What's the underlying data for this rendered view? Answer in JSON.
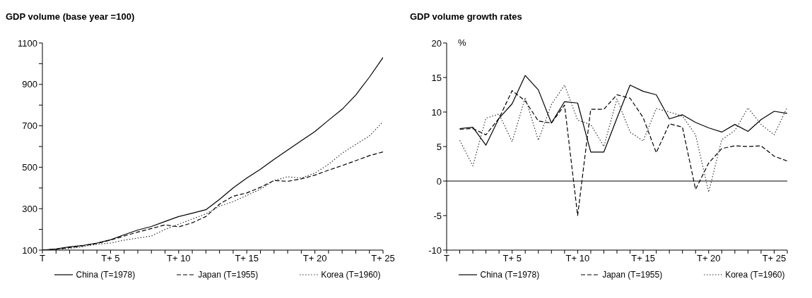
{
  "chart_data": [
    {
      "type": "line",
      "title": "GDP volume (base year =100)",
      "categories": [
        "T",
        null,
        null,
        null,
        null,
        "T+ 5",
        null,
        null,
        null,
        null,
        "T+ 10",
        null,
        null,
        null,
        null,
        "T+ 15",
        null,
        null,
        null,
        null,
        "T+ 20",
        null,
        null,
        null,
        null,
        "T+ 25"
      ],
      "series": [
        {
          "name": "China (T=1978)",
          "color": "#000000",
          "line_style": "solid",
          "values": [
            100,
            106,
            116,
            123,
            134,
            150,
            174,
            197,
            214,
            238,
            262,
            278,
            295,
            345,
            400,
            448,
            490,
            538,
            583,
            628,
            672,
            727,
            780,
            849,
            935,
            1030
          ]
        },
        {
          "name": "Japan (T=1955)",
          "color": "#000000",
          "line_style": "dashed",
          "values": [
            100,
            104,
            112,
            121,
            132,
            148,
            168,
            187,
            204,
            222,
            212,
            232,
            262,
            322,
            360,
            376,
            403,
            436,
            432,
            444,
            462,
            486,
            508,
            532,
            556,
            574
          ]
        },
        {
          "name": "Korea (T=1960)",
          "color": "#333333",
          "line_style": "dotted",
          "values": [
            100,
            102,
            108,
            117,
            128,
            134,
            148,
            158,
            168,
            200,
            225,
            250,
            275,
            312,
            334,
            364,
            394,
            436,
            454,
            448,
            472,
            514,
            568,
            610,
            651,
            720
          ]
        }
      ],
      "ylim": [
        100,
        1100
      ],
      "yticks": [
        100,
        {
          "value": 200,
          "label": null
        },
        300,
        {
          "value": 400,
          "label": null
        },
        500,
        {
          "value": 600,
          "label": null
        },
        700,
        {
          "value": 800,
          "label": null
        },
        900,
        {
          "value": 1000,
          "label": null
        },
        1100
      ],
      "grid": false,
      "legend": "bottom",
      "marker": "none"
    },
    {
      "type": "line",
      "title": "GDP volume growth rates",
      "ylabel": "%",
      "categories": [
        "T",
        null,
        null,
        null,
        null,
        "T+ 5",
        null,
        null,
        null,
        null,
        "T+ 10",
        null,
        null,
        null,
        null,
        "T+ 15",
        null,
        null,
        null,
        null,
        "T+ 20",
        null,
        null,
        null,
        null,
        "T+ 25",
        null
      ],
      "series": [
        {
          "name": "China (T=1978)",
          "color": "#000000",
          "line_style": "solid",
          "values": [
            null,
            7.6,
            7.8,
            5.2,
            9.1,
            11.2,
            15.3,
            13.2,
            8.4,
            11.5,
            11.3,
            4.2,
            4.2,
            9.1,
            13.9,
            13.0,
            12.5,
            9.0,
            9.6,
            8.5,
            7.7,
            7.1,
            8.2,
            7.2,
            8.9,
            10.1,
            9.8
          ]
        },
        {
          "name": "Japan (T=1955)",
          "color": "#000000",
          "line_style": "dashed",
          "values": [
            null,
            7.5,
            7.6,
            6.7,
            9.1,
            13.1,
            11.6,
            8.7,
            8.4,
            11.0,
            -5.0,
            10.4,
            10.4,
            12.5,
            12.0,
            9.2,
            4.1,
            8.3,
            7.8,
            -1.2,
            2.6,
            4.7,
            5.1,
            5.0,
            5.1,
            3.6,
            2.9
          ]
        },
        {
          "name": "Korea (T=1960)",
          "color": "#333333",
          "line_style": "dotted",
          "values": [
            null,
            5.9,
            2.2,
            9.1,
            9.7,
            5.7,
            12.1,
            5.9,
            11.1,
            13.9,
            8.8,
            8.2,
            5.0,
            11.9,
            7.1,
            5.8,
            10.5,
            10.0,
            9.4,
            6.7,
            -1.6,
            6.0,
            7.3,
            10.6,
            8.2,
            6.7,
            10.7
          ]
        }
      ],
      "ylim": [
        -10,
        20
      ],
      "yticks": [
        -10,
        -5,
        0,
        5,
        10,
        15,
        20
      ],
      "ref_lines": [
        {
          "axis": "y",
          "value": 0,
          "color": "#000000"
        }
      ],
      "grid": false,
      "legend": "bottom",
      "marker": "none"
    }
  ]
}
